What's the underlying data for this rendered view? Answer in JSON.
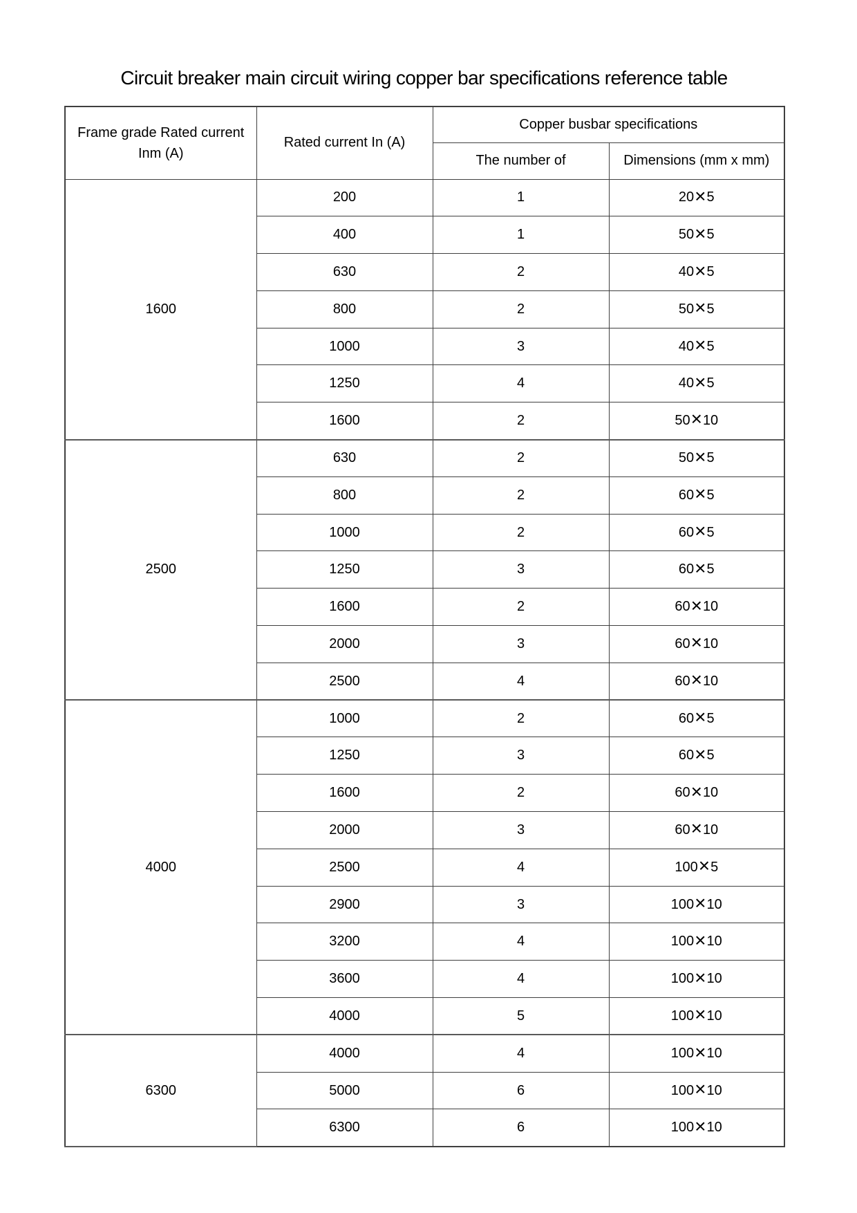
{
  "title": "Circuit breaker main circuit wiring copper bar specifications reference table",
  "table": {
    "header": {
      "frame_col_line1": "Frame grade Rated current",
      "frame_col_line2": "Inm (A)",
      "rated_col": "Rated current In (A)",
      "busbar_group": "Copper busbar specifications",
      "number_col": "The number of",
      "dimensions_col": "Dimensions (mm x mm)"
    },
    "groups": [
      {
        "frame_grade": "1600",
        "rows": [
          {
            "rated": "200",
            "count": "1",
            "dims": "20×5"
          },
          {
            "rated": "400",
            "count": "1",
            "dims": "50×5"
          },
          {
            "rated": "630",
            "count": "2",
            "dims": "40×5"
          },
          {
            "rated": "800",
            "count": "2",
            "dims": "50×5"
          },
          {
            "rated": "1000",
            "count": "3",
            "dims": "40×5"
          },
          {
            "rated": "1250",
            "count": "4",
            "dims": "40×5"
          },
          {
            "rated": "1600",
            "count": "2",
            "dims": "50×10"
          }
        ]
      },
      {
        "frame_grade": "2500",
        "rows": [
          {
            "rated": "630",
            "count": "2",
            "dims": "50×5"
          },
          {
            "rated": "800",
            "count": "2",
            "dims": "60×5"
          },
          {
            "rated": "1000",
            "count": "2",
            "dims": "60×5"
          },
          {
            "rated": "1250",
            "count": "3",
            "dims": "60×5"
          },
          {
            "rated": "1600",
            "count": "2",
            "dims": "60×10"
          },
          {
            "rated": "2000",
            "count": "3",
            "dims": "60×10"
          },
          {
            "rated": "2500",
            "count": "4",
            "dims": "60×10"
          }
        ]
      },
      {
        "frame_grade": "4000",
        "rows": [
          {
            "rated": "1000",
            "count": "2",
            "dims": "60×5"
          },
          {
            "rated": "1250",
            "count": "3",
            "dims": "60×5"
          },
          {
            "rated": "1600",
            "count": "2",
            "dims": "60×10"
          },
          {
            "rated": "2000",
            "count": "3",
            "dims": "60×10"
          },
          {
            "rated": "2500",
            "count": "4",
            "dims": "100×5"
          },
          {
            "rated": "2900",
            "count": "3",
            "dims": "100×10"
          },
          {
            "rated": "3200",
            "count": "4",
            "dims": "100×10"
          },
          {
            "rated": "3600",
            "count": "4",
            "dims": "100×10"
          },
          {
            "rated": "4000",
            "count": "5",
            "dims": "100×10"
          }
        ]
      },
      {
        "frame_grade": "6300",
        "rows": [
          {
            "rated": "4000",
            "count": "4",
            "dims": "100×10"
          },
          {
            "rated": "5000",
            "count": "6",
            "dims": "100×10"
          },
          {
            "rated": "6300",
            "count": "6",
            "dims": "100×10"
          }
        ]
      }
    ]
  },
  "colors": {
    "text": "#000000",
    "background": "#ffffff",
    "border_strong": "#3f3f3f",
    "border_group": "#595959",
    "border_row": "#8f8f8f"
  }
}
